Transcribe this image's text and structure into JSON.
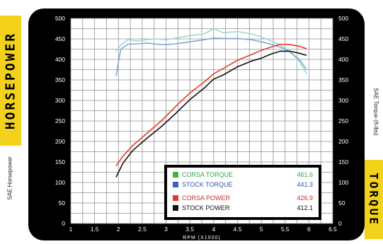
{
  "chart_data": {
    "type": "line",
    "left_axis_title": "HORSEPOWER",
    "left_axis_subtitle": "SAE Horsepower",
    "right_axis_title": "TORQUE",
    "right_axis_subtitle": "SAE Torque (ft-lbs)",
    "xlabel": "RPM (X1000)",
    "xlim": [
      1,
      6.5
    ],
    "ylim": [
      0,
      500
    ],
    "x_ticks": [
      "1",
      "1.5",
      "2",
      "2.5",
      "3",
      "3.5",
      "4",
      "4.5",
      "5",
      "5.5",
      "6",
      "6.5"
    ],
    "y_ticks": [
      "0",
      "50",
      "100",
      "150",
      "200",
      "250",
      "300",
      "350",
      "400",
      "450",
      "500"
    ],
    "grid": true,
    "legend_position": "bottom-right",
    "series": [
      {
        "name": "CORSA TORQUE",
        "peak_label": "461.6",
        "color": "#9fd8d8",
        "x": [
          1.95,
          2.05,
          2.2,
          2.4,
          2.6,
          2.8,
          3.0,
          3.2,
          3.5,
          3.8,
          4.0,
          4.2,
          4.5,
          4.8,
          5.0,
          5.2,
          5.4,
          5.6,
          5.8,
          5.95
        ],
        "y": [
          420,
          435,
          448,
          445,
          448,
          450,
          448,
          452,
          458,
          462,
          475,
          465,
          468,
          462,
          455,
          445,
          435,
          420,
          395,
          365
        ]
      },
      {
        "name": "STOCK TORQUE",
        "peak_label": "441.3",
        "color": "#7fa8d8",
        "x": [
          1.95,
          2.05,
          2.2,
          2.4,
          2.6,
          2.8,
          3.0,
          3.2,
          3.5,
          3.8,
          4.0,
          4.2,
          4.5,
          4.8,
          5.0,
          5.2,
          5.4,
          5.6,
          5.8,
          5.95
        ],
        "y": [
          360,
          425,
          437,
          438,
          440,
          437,
          436,
          438,
          443,
          448,
          452,
          451,
          451,
          448,
          443,
          437,
          430,
          418,
          400,
          375
        ]
      },
      {
        "name": "CORSA POWER",
        "peak_label": "426.9",
        "color": "#e63a2e",
        "x": [
          1.95,
          2.1,
          2.3,
          2.6,
          2.9,
          3.2,
          3.5,
          3.8,
          4.0,
          4.2,
          4.5,
          4.8,
          5.0,
          5.2,
          5.4,
          5.6,
          5.8,
          5.95
        ],
        "y": [
          140,
          165,
          190,
          220,
          250,
          285,
          318,
          345,
          365,
          378,
          398,
          412,
          422,
          430,
          437,
          436,
          432,
          426
        ]
      },
      {
        "name": "STOCK POWER",
        "peak_label": "412.1",
        "color": "#111111",
        "x": [
          1.95,
          2.1,
          2.3,
          2.6,
          2.9,
          3.2,
          3.5,
          3.8,
          4.0,
          4.2,
          4.5,
          4.8,
          5.0,
          5.2,
          5.4,
          5.6,
          5.8,
          5.95
        ],
        "y": [
          113,
          148,
          178,
          208,
          236,
          268,
          302,
          330,
          352,
          362,
          382,
          396,
          403,
          413,
          420,
          420,
          415,
          410
        ]
      }
    ]
  }
}
